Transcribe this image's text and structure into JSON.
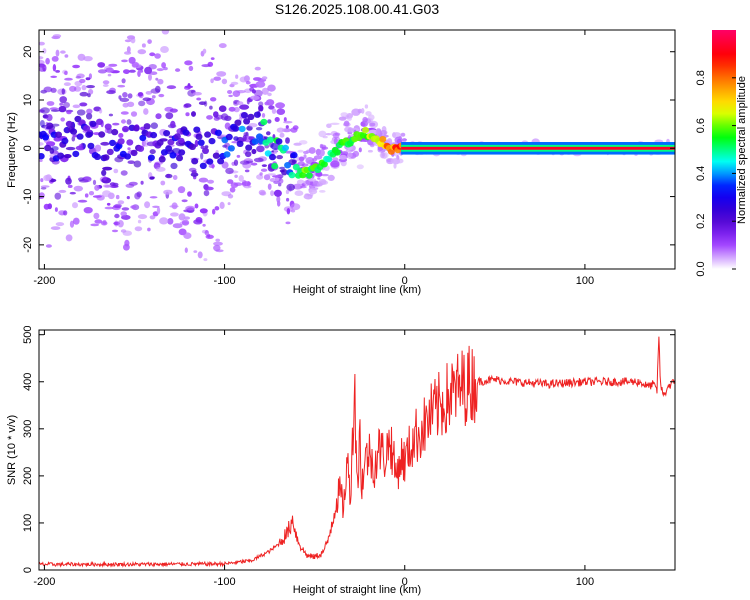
{
  "chart_data": [
    {
      "type": "heatmap",
      "title": "S126.2025.108.00.41.G03",
      "xlabel": "Height of straight line (km)",
      "ylabel": "Frequency (Hz)",
      "xlim": [
        -203,
        150
      ],
      "ylim": [
        -25,
        24.5
      ],
      "xticks": [
        -200,
        -100,
        0,
        100
      ],
      "xtick_labels": [
        "-200",
        "-100",
        "0",
        "100"
      ],
      "yticks": [
        20,
        10,
        0,
        -10,
        -20
      ],
      "ytick_labels": [
        "20",
        "10",
        "0",
        "-10",
        "-20"
      ],
      "colorbar": {
        "label": "Normalized spectral amplitude",
        "range": [
          0,
          1
        ],
        "ticks": [
          0.0,
          0.2,
          0.4,
          0.6,
          0.8
        ],
        "tick_labels": [
          "0.0",
          "0.2",
          "0.4",
          "0.6",
          "0.8"
        ],
        "colors": [
          "#ffffff",
          "#9933ff",
          "#4400cc",
          "#0000ff",
          "#00ffff",
          "#00ff00",
          "#ffff00",
          "#ff8800",
          "#ff0000",
          "#ff0066"
        ]
      },
      "ridge": {
        "x": [
          -203,
          -190,
          -175,
          -160,
          -145,
          -130,
          -115,
          -100,
          -90,
          -82,
          -76,
          -70,
          -64,
          -58,
          -52,
          -46,
          -40,
          -34,
          -28,
          -22,
          -18,
          -14,
          -10,
          -6,
          0,
          10,
          50,
          100,
          150
        ],
        "freq": [
          2,
          1,
          3,
          0,
          2,
          1,
          0,
          1,
          3,
          4,
          2,
          -1,
          -4,
          -5,
          -5,
          -3,
          -1,
          1,
          2,
          3,
          3,
          2,
          0,
          -0.5,
          0,
          0,
          0,
          0,
          0
        ],
        "amplitude": [
          0.3,
          0.3,
          0.3,
          0.3,
          0.3,
          0.3,
          0.3,
          0.35,
          0.4,
          0.5,
          0.55,
          0.55,
          0.55,
          0.6,
          0.6,
          0.55,
          0.55,
          0.6,
          0.6,
          0.65,
          0.65,
          0.7,
          0.8,
          0.85,
          0.9,
          0.95,
          0.95,
          0.95,
          0.95
        ]
      }
    },
    {
      "type": "line",
      "xlabel": "Height of straight line (km)",
      "ylabel": "SNR (10 * v/v)",
      "xlim": [
        -203,
        150
      ],
      "ylim": [
        0,
        510
      ],
      "xticks": [
        -200,
        -100,
        0,
        100
      ],
      "xtick_labels": [
        "-200",
        "-100",
        "0",
        "100"
      ],
      "yticks": [
        0,
        100,
        200,
        300,
        400,
        500
      ],
      "ytick_labels": [
        "0",
        "100",
        "200",
        "300",
        "400",
        "500"
      ],
      "series": [
        {
          "name": "SNR",
          "color": "#ee2222",
          "x": [
            -203,
            -150,
            -100,
            -85,
            -75,
            -70,
            -65,
            -62,
            -60,
            -57,
            -54,
            -50,
            -46,
            -43,
            -40,
            -38,
            -36,
            -34,
            -32,
            -30,
            -28,
            -26,
            -25,
            -24,
            -22,
            -20,
            -17,
            -14,
            -11,
            -8,
            -5,
            -2,
            0,
            5,
            10,
            15,
            20,
            25,
            30,
            35,
            40,
            50,
            60,
            80,
            100,
            120,
            130,
            135,
            138,
            140,
            141,
            142,
            144,
            146,
            150
          ],
          "y": [
            12,
            12,
            13,
            20,
            40,
            55,
            80,
            110,
            70,
            45,
            30,
            28,
            35,
            55,
            110,
            145,
            170,
            130,
            230,
            160,
            395,
            170,
            300,
            180,
            230,
            250,
            220,
            260,
            240,
            280,
            200,
            240,
            230,
            280,
            300,
            330,
            350,
            370,
            385,
            395,
            400,
            405,
            400,
            395,
            400,
            400,
            400,
            390,
            395,
            380,
            500,
            390,
            370,
            390,
            400
          ]
        }
      ]
    }
  ]
}
